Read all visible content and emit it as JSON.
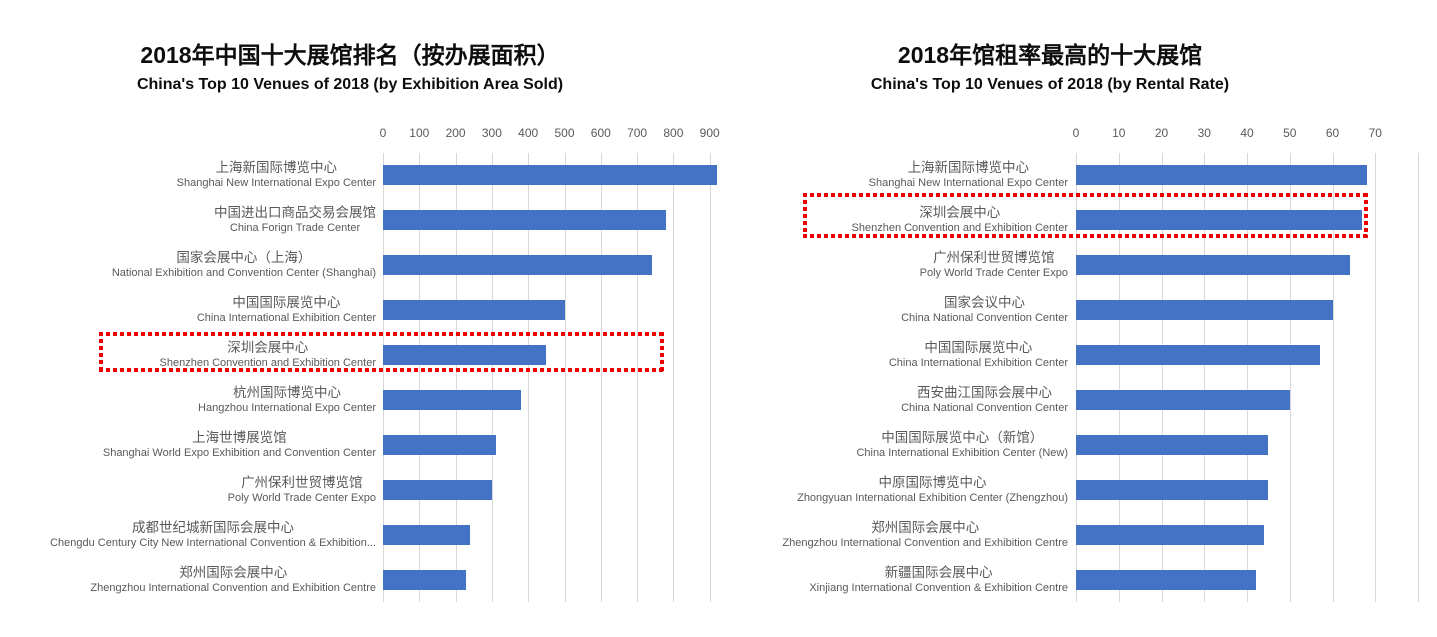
{
  "page": {
    "background": "#ffffff"
  },
  "chart_data": [
    {
      "type": "bar",
      "orientation": "horizontal",
      "title": "2018年中国十大展馆排名（按办展面积）",
      "subtitle": "China's Top 10 Venues of 2018 (by Exhibition Area Sold)",
      "xlim": [
        0,
        1000
      ],
      "ticks": [
        0,
        100,
        200,
        300,
        400,
        500,
        600,
        700,
        800,
        900
      ],
      "grid": true,
      "legend": "none",
      "bar_color": "#4472C4",
      "grid_color": "#d8d8d8",
      "label_color": "#595959",
      "highlight_index": 4,
      "highlight_color": "#ee0000",
      "categories": [
        {
          "zh": "上海新国际博览中心",
          "en": "Shanghai New International Expo Center"
        },
        {
          "zh": "中国进出口商品交易会展馆",
          "en": "China Forign Trade Center"
        },
        {
          "zh": "国家会展中心（上海）",
          "en": "National Exhibition and Convention Center (Shanghai)"
        },
        {
          "zh": "中国国际展览中心",
          "en": "China International Exhibition Center"
        },
        {
          "zh": "深圳会展中心",
          "en": "Shenzhen Convention and Exhibition Center"
        },
        {
          "zh": "杭州国际博览中心",
          "en": "Hangzhou International Expo Center"
        },
        {
          "zh": "上海世博展览馆",
          "en": "Shanghai World Expo Exhibition and Convention Center"
        },
        {
          "zh": "广州保利世贸博览馆",
          "en": "Poly World Trade Center Expo"
        },
        {
          "zh": "成都世纪城新国际会展中心",
          "en": "Chengdu Century City New International Convention & Exhibition..."
        },
        {
          "zh": "郑州国际会展中心",
          "en": "Zhengzhou International Convention and Exhibition Centre"
        }
      ],
      "values": [
        920,
        780,
        740,
        500,
        450,
        380,
        310,
        300,
        240,
        230
      ]
    },
    {
      "type": "bar",
      "orientation": "horizontal",
      "title": "2018年馆租率最高的十大展馆",
      "subtitle": "China's Top 10 Venues of 2018 (by Rental Rate)",
      "xlim": [
        0,
        80
      ],
      "ticks": [
        0,
        10,
        20,
        30,
        40,
        50,
        60,
        70
      ],
      "grid": true,
      "legend": "none",
      "bar_color": "#4472C4",
      "grid_color": "#d8d8d8",
      "label_color": "#595959",
      "highlight_index": 1,
      "highlight_color": "#ee0000",
      "categories": [
        {
          "zh": "上海新国际博览中心",
          "en": "Shanghai New International Expo Center"
        },
        {
          "zh": "深圳会展中心",
          "en": "Shenzhen Convention and Exhibition Center"
        },
        {
          "zh": "广州保利世贸博览馆",
          "en": "Poly World Trade Center Expo"
        },
        {
          "zh": "国家会议中心",
          "en": "China National Convention Center"
        },
        {
          "zh": "中国国际展览中心",
          "en": "China International Exhibition Center"
        },
        {
          "zh": "西安曲江国际会展中心",
          "en": "China National Convention Center"
        },
        {
          "zh": "中国国际展览中心（新馆）",
          "en": "China International Exhibition Center (New)"
        },
        {
          "zh": "中原国际博览中心",
          "en": "Zhongyuan International Exhibition Center (Zhengzhou)"
        },
        {
          "zh": "郑州国际会展中心",
          "en": "Zhengzhou International Convention and Exhibition Centre"
        },
        {
          "zh": "新疆国际会展中心",
          "en": "Xinjiang International Convention & Exhibition Centre"
        }
      ],
      "values": [
        68,
        67,
        64,
        60,
        57,
        50,
        45,
        45,
        44,
        42
      ]
    }
  ]
}
